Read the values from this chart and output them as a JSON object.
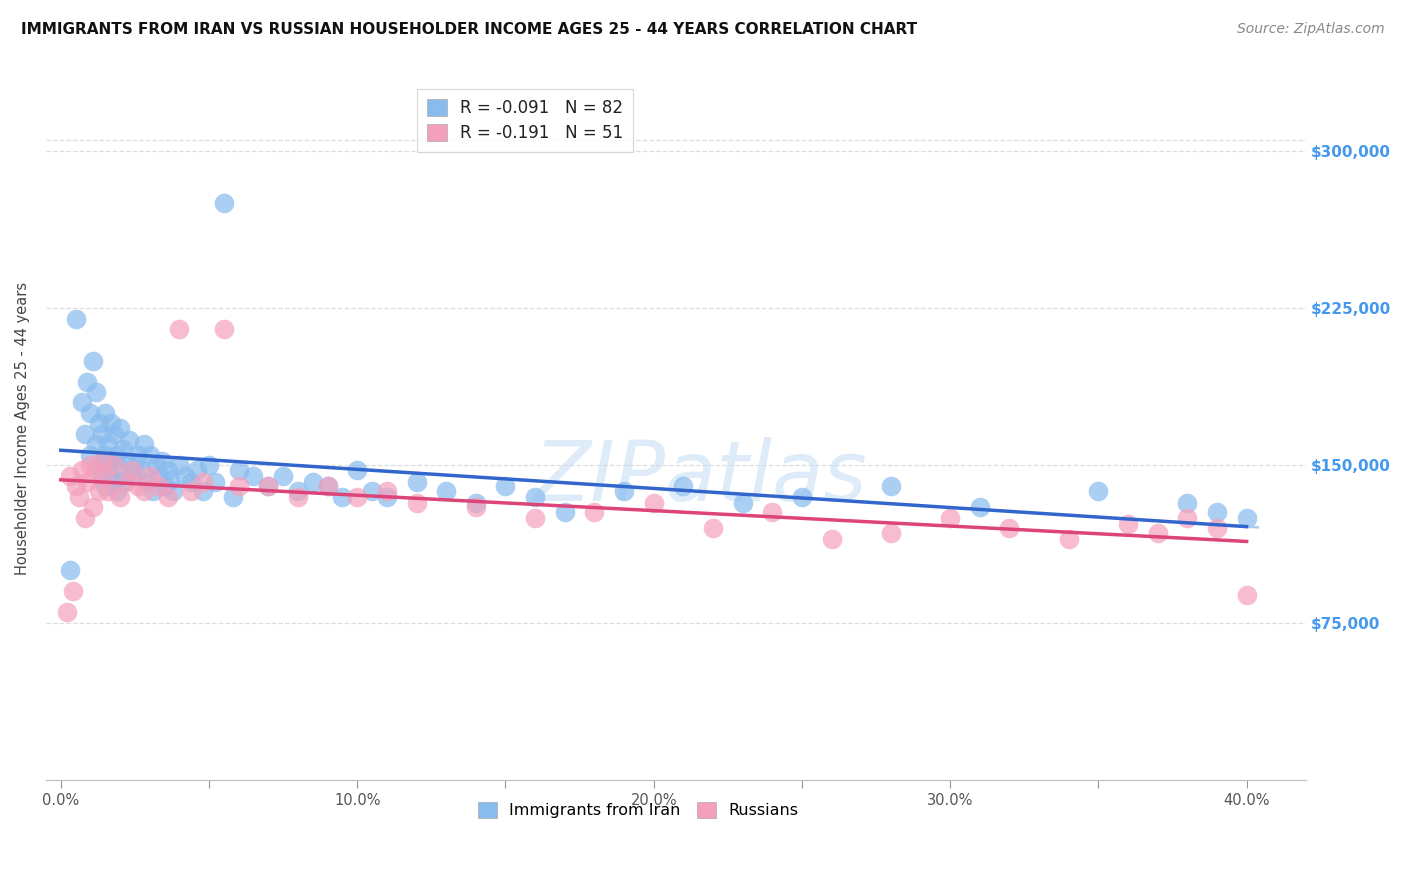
{
  "title": "IMMIGRANTS FROM IRAN VS RUSSIAN HOUSEHOLDER INCOME AGES 25 - 44 YEARS CORRELATION CHART",
  "source": "Source: ZipAtlas.com",
  "ylabel": "Householder Income Ages 25 - 44 years",
  "iran_color": "#88bbee",
  "russia_color": "#f4a0bb",
  "iran_line_color": "#3366cc",
  "russia_line_color": "#dd4477",
  "legend_iran_label": "R = -0.091   N = 82",
  "legend_russia_label": "R = -0.191   N = 51",
  "watermark_text": "ZIPatlas",
  "iran_scatter_x": [
    0.003,
    0.005,
    0.007,
    0.008,
    0.009,
    0.01,
    0.01,
    0.011,
    0.012,
    0.012,
    0.013,
    0.013,
    0.014,
    0.014,
    0.015,
    0.015,
    0.015,
    0.016,
    0.016,
    0.017,
    0.017,
    0.018,
    0.018,
    0.019,
    0.019,
    0.02,
    0.02,
    0.021,
    0.021,
    0.022,
    0.023,
    0.024,
    0.025,
    0.026,
    0.027,
    0.028,
    0.029,
    0.03,
    0.031,
    0.032,
    0.033,
    0.034,
    0.035,
    0.036,
    0.037,
    0.038,
    0.04,
    0.042,
    0.044,
    0.046,
    0.048,
    0.05,
    0.052,
    0.055,
    0.058,
    0.06,
    0.065,
    0.07,
    0.075,
    0.08,
    0.085,
    0.09,
    0.095,
    0.1,
    0.105,
    0.11,
    0.12,
    0.13,
    0.14,
    0.15,
    0.16,
    0.17,
    0.19,
    0.21,
    0.23,
    0.25,
    0.28,
    0.31,
    0.35,
    0.38,
    0.39,
    0.4
  ],
  "iran_scatter_y": [
    100000,
    220000,
    180000,
    165000,
    190000,
    175000,
    155000,
    200000,
    185000,
    160000,
    170000,
    150000,
    165000,
    145000,
    175000,
    155000,
    140000,
    160000,
    148000,
    170000,
    152000,
    165000,
    143000,
    155000,
    138000,
    168000,
    148000,
    158000,
    142000,
    152000,
    162000,
    145000,
    150000,
    155000,
    148000,
    160000,
    142000,
    155000,
    138000,
    150000,
    145000,
    152000,
    140000,
    148000,
    143000,
    138000,
    150000,
    145000,
    142000,
    148000,
    138000,
    150000,
    142000,
    275000,
    135000,
    148000,
    145000,
    140000,
    145000,
    138000,
    142000,
    140000,
    135000,
    148000,
    138000,
    135000,
    142000,
    138000,
    132000,
    140000,
    135000,
    128000,
    138000,
    140000,
    132000,
    135000,
    140000,
    130000,
    138000,
    132000,
    128000,
    125000
  ],
  "russia_scatter_x": [
    0.002,
    0.003,
    0.004,
    0.005,
    0.006,
    0.007,
    0.008,
    0.009,
    0.01,
    0.011,
    0.012,
    0.013,
    0.014,
    0.015,
    0.016,
    0.018,
    0.02,
    0.022,
    0.024,
    0.026,
    0.028,
    0.03,
    0.033,
    0.036,
    0.04,
    0.044,
    0.048,
    0.055,
    0.06,
    0.07,
    0.08,
    0.09,
    0.1,
    0.11,
    0.12,
    0.14,
    0.16,
    0.18,
    0.2,
    0.22,
    0.24,
    0.26,
    0.28,
    0.3,
    0.32,
    0.34,
    0.36,
    0.37,
    0.38,
    0.39,
    0.4
  ],
  "russia_scatter_y": [
    80000,
    145000,
    90000,
    140000,
    135000,
    148000,
    125000,
    142000,
    150000,
    130000,
    148000,
    138000,
    152000,
    145000,
    138000,
    150000,
    135000,
    142000,
    148000,
    140000,
    138000,
    145000,
    140000,
    135000,
    215000,
    138000,
    142000,
    215000,
    140000,
    140000,
    135000,
    140000,
    135000,
    138000,
    132000,
    130000,
    125000,
    128000,
    132000,
    120000,
    128000,
    115000,
    118000,
    125000,
    120000,
    115000,
    122000,
    118000,
    125000,
    120000,
    88000
  ],
  "xlim": [
    -0.005,
    0.42
  ],
  "ylim": [
    0,
    335000
  ],
  "xticks": [
    0.0,
    0.05,
    0.1,
    0.15,
    0.2,
    0.25,
    0.3,
    0.35,
    0.4
  ],
  "xtick_labels": [
    "0.0%",
    "",
    "10.0%",
    "",
    "20.0%",
    "",
    "30.0%",
    "",
    "40.0%"
  ],
  "yticks": [
    75000,
    150000,
    225000,
    300000
  ],
  "ytick_labels": [
    "$75,000",
    "$150,000",
    "$225,000",
    "$300,000"
  ],
  "ytick_color": "#4499ee",
  "title_fontsize": 11,
  "source_fontsize": 10
}
